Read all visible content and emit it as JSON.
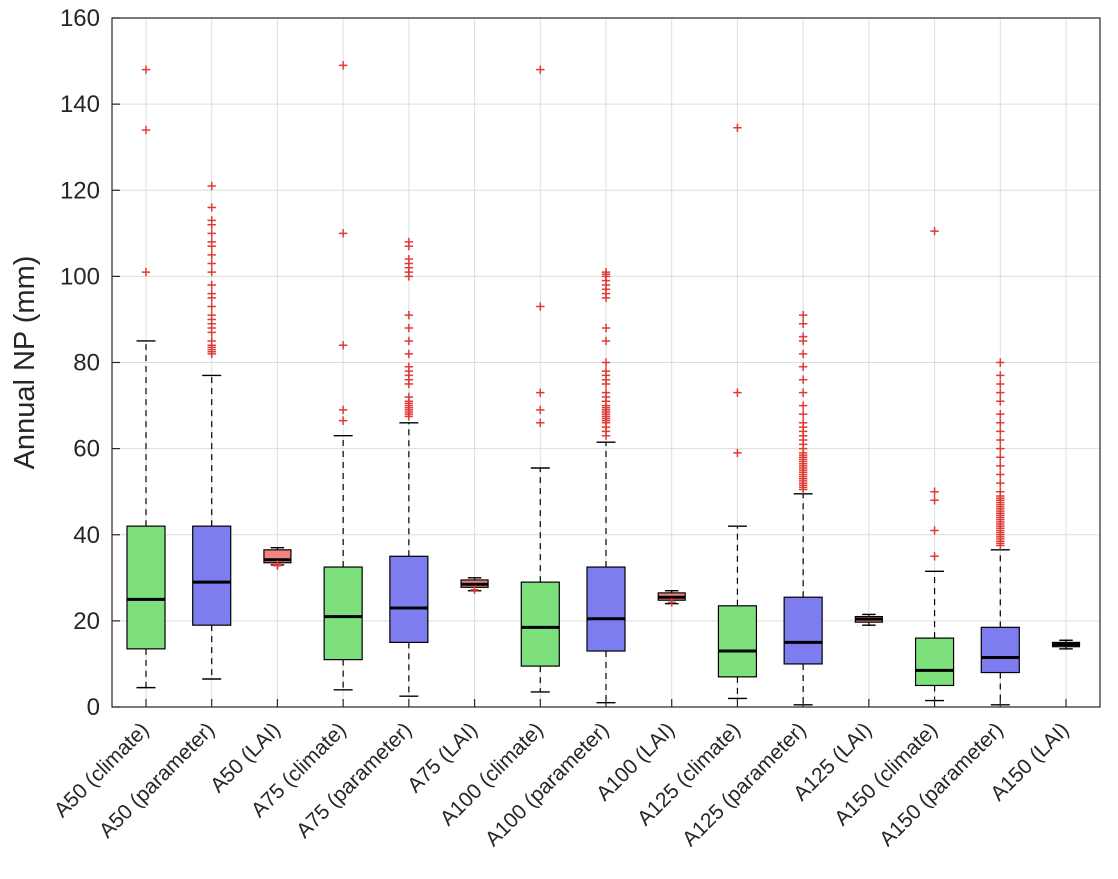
{
  "chart_data": {
    "type": "boxplot",
    "title": "",
    "xlabel": "",
    "ylabel": "Annual NP (mm)",
    "ylim": [
      0,
      160
    ],
    "yticks": [
      0,
      20,
      40,
      60,
      80,
      100,
      120,
      140,
      160
    ],
    "grid": true,
    "legend": "none",
    "colors": {
      "climate": "#7de07d",
      "parameter": "#7d7def",
      "LAI": "#f28382",
      "box_edge": "#000000",
      "median": "#000000",
      "whisker": "#000000",
      "outlier": "#e03a34",
      "grid_line": "#dedede",
      "axis": "#262626"
    },
    "categories": [
      "A50 (climate)",
      "A50 (parameter)",
      "A50 (LAI)",
      "A75 (climate)",
      "A75 (parameter)",
      "A75 (LAI)",
      "A100 (climate)",
      "A100 (parameter)",
      "A100 (LAI)",
      "A125 (climate)",
      "A125 (parameter)",
      "A125 (LAI)",
      "A150 (climate)",
      "A150 (parameter)",
      "A150 (LAI)"
    ],
    "boxes": [
      {
        "label": "A50 (climate)",
        "group": "climate",
        "whisker_low": 4.5,
        "q1": 13.5,
        "median": 25,
        "q3": 42,
        "whisker_high": 85,
        "outliers": [
          101,
          134,
          148
        ]
      },
      {
        "label": "A50 (parameter)",
        "group": "parameter",
        "whisker_low": 6.5,
        "q1": 19,
        "median": 29,
        "q3": 42,
        "whisker_high": 77,
        "outliers": [
          82,
          82.5,
          83,
          83.5,
          84,
          85,
          87,
          88,
          89,
          90,
          91,
          93,
          95,
          96,
          98,
          101,
          103,
          105,
          107,
          108,
          110,
          112,
          113,
          116,
          121
        ]
      },
      {
        "label": "A50 (LAI)",
        "group": "LAI",
        "whisker_low": 33,
        "q1": 33.5,
        "median": 34.2,
        "q3": 36.5,
        "whisker_high": 37,
        "outliers": [
          32.8,
          33.1
        ]
      },
      {
        "label": "A75 (climate)",
        "group": "climate",
        "whisker_low": 4,
        "q1": 11,
        "median": 21,
        "q3": 32.5,
        "whisker_high": 63,
        "outliers": [
          66.5,
          69,
          84,
          110,
          149
        ]
      },
      {
        "label": "A75 (parameter)",
        "group": "parameter",
        "whisker_low": 2.5,
        "q1": 15,
        "median": 23,
        "q3": 35,
        "whisker_high": 66,
        "outliers": [
          67.5,
          68,
          68.5,
          69,
          69.5,
          70,
          70.5,
          71,
          72,
          75,
          76,
          77,
          78,
          79,
          82,
          85,
          88,
          91,
          100,
          101,
          102,
          103,
          104,
          107,
          108
        ]
      },
      {
        "label": "A75 (LAI)",
        "group": "LAI",
        "whisker_low": 27,
        "q1": 27.8,
        "median": 28.5,
        "q3": 29.5,
        "whisker_high": 30,
        "outliers": [
          27.2
        ]
      },
      {
        "label": "A100 (climate)",
        "group": "climate",
        "whisker_low": 3.5,
        "q1": 9.5,
        "median": 18.5,
        "q3": 29,
        "whisker_high": 55.5,
        "outliers": [
          66,
          69,
          73,
          93,
          148
        ]
      },
      {
        "label": "A100 (parameter)",
        "group": "parameter",
        "whisker_low": 1,
        "q1": 13,
        "median": 20.5,
        "q3": 32.5,
        "whisker_high": 61.5,
        "outliers": [
          63,
          64,
          65,
          66,
          66.5,
          67,
          67.5,
          68,
          68.5,
          69,
          69.5,
          70,
          71,
          72,
          73,
          75,
          76,
          77,
          78,
          80,
          85,
          88,
          95,
          96,
          97,
          98,
          99,
          100,
          100.5,
          101
        ]
      },
      {
        "label": "A100 (LAI)",
        "group": "LAI",
        "whisker_low": 24,
        "q1": 24.8,
        "median": 25.5,
        "q3": 26.5,
        "whisker_high": 27,
        "outliers": [
          24.3
        ]
      },
      {
        "label": "A125 (climate)",
        "group": "climate",
        "whisker_low": 2,
        "q1": 7,
        "median": 13,
        "q3": 23.5,
        "whisker_high": 42,
        "outliers": [
          59,
          73,
          134.5
        ]
      },
      {
        "label": "A125 (parameter)",
        "group": "parameter",
        "whisker_low": 0.5,
        "q1": 10,
        "median": 15,
        "q3": 25.5,
        "whisker_high": 49.5,
        "outliers": [
          50.5,
          51,
          51.5,
          52,
          52.5,
          53,
          53.5,
          54,
          54.5,
          55,
          55.5,
          56,
          56.5,
          57,
          57.5,
          58,
          58.5,
          59,
          60,
          61,
          62,
          63,
          64,
          65,
          66,
          68,
          70,
          73,
          76,
          79,
          82,
          85,
          86,
          89,
          91
        ]
      },
      {
        "label": "A125 (LAI)",
        "group": "LAI",
        "whisker_low": 19,
        "q1": 19.7,
        "median": 20.4,
        "q3": 21,
        "whisker_high": 21.5,
        "outliers": []
      },
      {
        "label": "A150 (climate)",
        "group": "climate",
        "whisker_low": 1.5,
        "q1": 5,
        "median": 8.5,
        "q3": 16,
        "whisker_high": 31.5,
        "outliers": [
          35,
          41,
          48,
          50,
          110.5
        ]
      },
      {
        "label": "A150 (parameter)",
        "group": "parameter",
        "whisker_low": 0.5,
        "q1": 8,
        "median": 11.5,
        "q3": 18.5,
        "whisker_high": 36.5,
        "outliers": [
          37.5,
          38,
          38.5,
          39,
          39.5,
          40,
          40.5,
          41,
          41.5,
          42,
          42.5,
          43,
          43.5,
          44,
          44.5,
          45,
          45.5,
          46,
          46.5,
          47,
          47.5,
          48,
          48.5,
          49,
          50,
          52,
          54,
          56,
          58,
          60,
          62,
          64,
          66,
          68,
          71,
          73,
          75,
          77,
          80
        ]
      },
      {
        "label": "A150 (LAI)",
        "group": "LAI",
        "whisker_low": 13.5,
        "q1": 14,
        "median": 14.5,
        "q3": 15,
        "whisker_high": 15.5,
        "outliers": []
      }
    ]
  }
}
